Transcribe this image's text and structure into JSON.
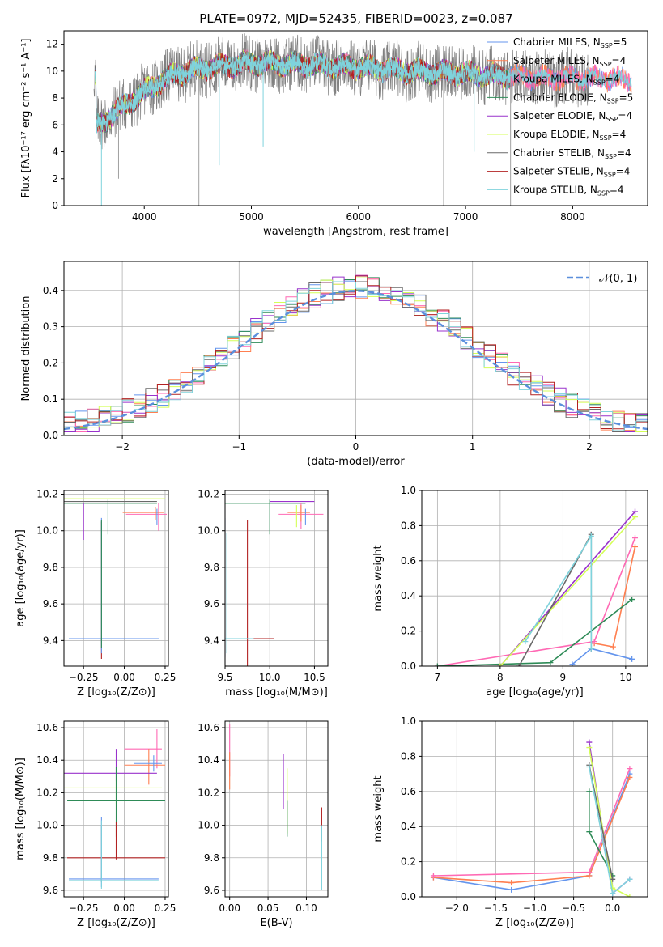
{
  "colors": {
    "Chabrier MILES": "#6495ed",
    "Salpeter MILES": "#ff7f50",
    "Kroupa MILES": "#ff69b4",
    "Chabrier ELODIE": "#2e8b57",
    "Salpeter ELODIE": "#9932cc",
    "Kroupa ELODIE": "#d4ff57",
    "Chabrier STELIB": "#696969",
    "Salpeter STELIB": "#b22222",
    "Kroupa STELIB": "#7fd3dc"
  },
  "chart_data": [
    {
      "id": "spectrum",
      "type": "line",
      "title": "PLATE=0972, MJD=52435, FIBERID=0023, z=0.087",
      "xlabel": "wavelength [Angstrom, rest frame]",
      "ylabel": "Flux [fλ10⁻¹⁷ erg cm⁻² s⁻¹ A⁻¹]",
      "xlim": [
        3250,
        8700
      ],
      "ylim": [
        0,
        13
      ],
      "xticks": [
        4000,
        5000,
        6000,
        7000,
        8000
      ],
      "yticks": [
        0,
        2,
        4,
        6,
        8,
        10,
        12
      ],
      "grid": false,
      "legend": "upper right",
      "legend_entries": [
        {
          "label": "Chabrier MILES, N",
          "sub": "SSP",
          "tail": "=5",
          "key": "Chabrier MILES"
        },
        {
          "label": "Salpeter MILES, N",
          "sub": "SSP",
          "tail": "=4",
          "key": "Salpeter MILES"
        },
        {
          "label": "Kroupa MILES, N",
          "sub": "SSP",
          "tail": "=4",
          "key": "Kroupa MILES"
        },
        {
          "label": "Chabrier ELODIE, N",
          "sub": "SSP",
          "tail": "=5",
          "key": "Chabrier ELODIE"
        },
        {
          "label": "Salpeter ELODIE, N",
          "sub": "SSP",
          "tail": "=4",
          "key": "Salpeter ELODIE"
        },
        {
          "label": "Kroupa ELODIE, N",
          "sub": "SSP",
          "tail": "=4",
          "key": "Kroupa ELODIE"
        },
        {
          "label": "Chabrier STELIB, N",
          "sub": "SSP",
          "tail": "=4",
          "key": "Chabrier STELIB"
        },
        {
          "label": "Salpeter STELIB, N",
          "sub": "SSP",
          "tail": "=4",
          "key": "Salpeter STELIB"
        },
        {
          "label": "Kroupa STELIB, N",
          "sub": "SSP",
          "tail": "=4",
          "key": "Kroupa STELIB"
        }
      ],
      "continuum": {
        "x": [
          3550,
          3700,
          3900,
          4100,
          4300,
          4600,
          5000,
          5500,
          6000,
          6500,
          7000,
          7500,
          8000,
          8500
        ],
        "y": [
          5.9,
          6.8,
          7.9,
          9.0,
          9.8,
          10.3,
          10.6,
          10.5,
          10.3,
          10.0,
          9.8,
          9.6,
          9.5,
          9.4
        ]
      }
    },
    {
      "id": "residuals",
      "type": "histogram",
      "xlabel": "(data-model)/error",
      "ylabel": "Normed distribution",
      "xlim": [
        -2.5,
        2.5
      ],
      "ylim": [
        0,
        0.48
      ],
      "xticks": [
        -2,
        -1,
        0,
        1,
        2
      ],
      "yticks": [
        0.0,
        0.1,
        0.2,
        0.3,
        0.4
      ],
      "grid": true,
      "legend": "upper right",
      "legend_label": "𝒩(0, 1)",
      "bin_width": 0.1
    },
    {
      "id": "age-Z",
      "type": "errorbar",
      "xlabel": "Z [log₁₀(Z/Z⊙)]",
      "ylabel": "age  [log₁₀(age/yr)]",
      "xlim": [
        -0.37,
        0.27
      ],
      "ylim": [
        9.26,
        10.22
      ],
      "xticks": [
        -0.25,
        0.0,
        0.25
      ],
      "yticks": [
        9.4,
        9.6,
        9.8,
        10.0,
        10.2
      ]
    },
    {
      "id": "age-mass",
      "type": "errorbar",
      "xlabel": "mass [log₁₀(M/M⊙)]",
      "ylabel": "",
      "xlim": [
        9.5,
        10.65
      ],
      "ylim": [
        9.26,
        10.22
      ],
      "xticks": [
        9.0,
        9.5,
        10.0,
        10.5
      ],
      "yticks": [
        9.4,
        9.6,
        9.8,
        10.0,
        10.2
      ]
    },
    {
      "id": "weight-age",
      "type": "line",
      "xlabel": "age  [log₁₀(age/yr)]",
      "ylabel": "mass weight",
      "xlim": [
        6.75,
        10.35
      ],
      "ylim": [
        0,
        1.0
      ],
      "xticks": [
        7,
        8,
        9,
        10
      ],
      "yticks": [
        0.0,
        0.2,
        0.4,
        0.6,
        0.8,
        1.0
      ],
      "series": [
        {
          "key": "Chabrier MILES",
          "x": [
            9.15,
            9.45,
            10.1
          ],
          "y": [
            0.01,
            0.1,
            0.04
          ]
        },
        {
          "key": "Salpeter MILES",
          "x": [
            9.5,
            9.8,
            10.15
          ],
          "y": [
            0.13,
            0.11,
            0.68
          ]
        },
        {
          "key": "Kroupa MILES",
          "x": [
            7.0,
            9.5,
            10.15
          ],
          "y": [
            0.0,
            0.14,
            0.73
          ]
        },
        {
          "key": "Chabrier ELODIE",
          "x": [
            7.0,
            8.8,
            10.1
          ],
          "y": [
            0.0,
            0.02,
            0.38
          ]
        },
        {
          "key": "Salpeter ELODIE",
          "x": [
            8.0,
            10.15
          ],
          "y": [
            0.0,
            0.88
          ]
        },
        {
          "key": "Kroupa ELODIE",
          "x": [
            8.0,
            10.15
          ],
          "y": [
            0.0,
            0.85
          ]
        },
        {
          "key": "Chabrier STELIB",
          "x": [
            8.3,
            9.45,
            9.45
          ],
          "y": [
            0.0,
            0.75,
            0.1
          ]
        },
        {
          "key": "Kroupa STELIB",
          "x": [
            8.4,
            9.45,
            9.45
          ],
          "y": [
            0.14,
            0.74,
            0.1
          ]
        }
      ]
    },
    {
      "id": "mass-Z",
      "type": "errorbar",
      "xlabel": "Z [log₁₀(Z/Z⊙)]",
      "ylabel": "mass [log₁₀(M/M⊙)]",
      "xlim": [
        -0.37,
        0.27
      ],
      "ylim": [
        9.56,
        10.64
      ],
      "xticks": [
        -0.25,
        0.0,
        0.25
      ],
      "yticks": [
        9.6,
        9.8,
        10.0,
        10.2,
        10.4,
        10.6
      ]
    },
    {
      "id": "mass-EBV",
      "type": "errorbar",
      "xlabel": "E(B-V)",
      "ylabel": "",
      "xlim": [
        -0.006,
        0.128
      ],
      "ylim": [
        9.56,
        10.64
      ],
      "xticks": [
        0.0,
        0.05,
        0.1
      ],
      "yticks": [
        9.6,
        9.8,
        10.0,
        10.2,
        10.4,
        10.6
      ]
    },
    {
      "id": "weight-Z",
      "type": "line",
      "xlabel": "Z [log₁₀(Z/Z⊙)]",
      "ylabel": "mass weight",
      "xlim": [
        -2.45,
        0.45
      ],
      "ylim": [
        0,
        1.0
      ],
      "xticks": [
        -2.0,
        -1.5,
        -1.0,
        -0.5,
        0.0
      ],
      "yticks": [
        0.0,
        0.2,
        0.4,
        0.6,
        0.8,
        1.0
      ],
      "series": [
        {
          "key": "Chabrier MILES",
          "x": [
            -2.3,
            -1.3,
            -0.3,
            0.22
          ],
          "y": [
            0.11,
            0.04,
            0.12,
            0.7
          ]
        },
        {
          "key": "Salpeter MILES",
          "x": [
            -2.3,
            -1.3,
            -0.3,
            0.22
          ],
          "y": [
            0.11,
            0.08,
            0.12,
            0.68
          ]
        },
        {
          "key": "Kroupa MILES",
          "x": [
            -2.3,
            -0.3,
            0.22
          ],
          "y": [
            0.12,
            0.14,
            0.73
          ]
        },
        {
          "key": "Chabrier ELODIE",
          "x": [
            -0.3,
            -0.3,
            0.0
          ],
          "y": [
            0.6,
            0.37,
            0.12
          ]
        },
        {
          "key": "Salpeter ELODIE",
          "x": [
            -0.3,
            0.0,
            0.22
          ],
          "y": [
            0.88,
            0.02,
            0.1
          ]
        },
        {
          "key": "Kroupa ELODIE",
          "x": [
            -0.3,
            0.0,
            0.22
          ],
          "y": [
            0.85,
            0.05,
            0.0
          ]
        },
        {
          "key": "Chabrier STELIB",
          "x": [
            -0.3,
            0.0
          ],
          "y": [
            0.75,
            0.1
          ]
        },
        {
          "key": "Kroupa STELIB",
          "x": [
            -0.3,
            0.0,
            0.22
          ],
          "y": [
            0.74,
            0.02,
            0.1
          ]
        }
      ]
    }
  ]
}
